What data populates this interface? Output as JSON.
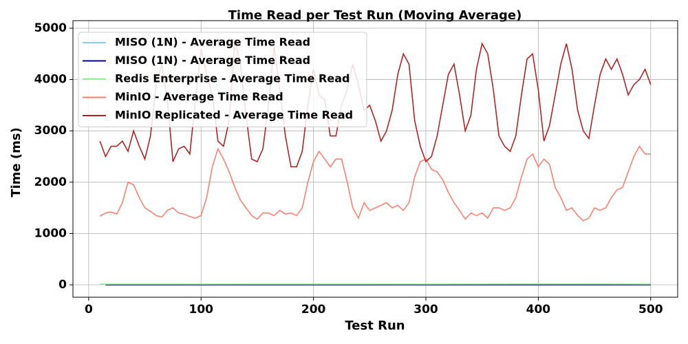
{
  "chart_data": {
    "type": "line",
    "title": "Time Read per Test Run (Moving Average)",
    "x_label": "Test Run",
    "y_label": "Time (ms)",
    "xlim": [
      -14,
      524
    ],
    "ylim": [
      -241,
      5147
    ],
    "xticks": [
      0,
      100,
      200,
      300,
      400,
      500
    ],
    "yticks": [
      0,
      1000,
      2000,
      3000,
      4000,
      5000
    ],
    "grid": true,
    "legend": "upper left",
    "series": [
      {
        "name": "MISO (1N) - Average Time Read",
        "color": "#87ceeb",
        "x": [
          15,
          100,
          200,
          300,
          400,
          500
        ],
        "values": [
          8,
          6,
          8,
          7,
          8,
          6
        ]
      },
      {
        "name": "MISO (1N) - Average Time Read",
        "color": "#000080",
        "x": [
          15,
          100,
          200,
          300,
          400,
          500
        ],
        "values": [
          2,
          1,
          2,
          1,
          2,
          1
        ]
      },
      {
        "name": "Redis Enterprise - Average Time Read",
        "color": "#90ee90",
        "x": [
          10,
          100,
          200,
          300,
          400,
          500
        ],
        "values": [
          15,
          14,
          15,
          14,
          16,
          15
        ]
      },
      {
        "name": "MinIO - Average Time Read",
        "color": "#fa8072",
        "x": [
          10,
          15,
          20,
          25,
          30,
          35,
          40,
          45,
          50,
          55,
          60,
          65,
          70,
          75,
          80,
          85,
          90,
          95,
          100,
          105,
          110,
          115,
          120,
          125,
          130,
          135,
          140,
          145,
          150,
          155,
          160,
          165,
          170,
          175,
          180,
          185,
          190,
          195,
          200,
          205,
          210,
          215,
          220,
          225,
          230,
          235,
          240,
          245,
          250,
          255,
          260,
          265,
          270,
          275,
          280,
          285,
          290,
          295,
          300,
          305,
          310,
          315,
          320,
          325,
          330,
          335,
          340,
          345,
          350,
          355,
          360,
          365,
          370,
          375,
          380,
          385,
          390,
          395,
          400,
          405,
          410,
          415,
          420,
          425,
          430,
          435,
          440,
          445,
          450,
          455,
          460,
          465,
          470,
          475,
          480,
          485,
          490,
          495,
          500
        ],
        "values": [
          1340,
          1400,
          1420,
          1380,
          1600,
          2000,
          1950,
          1700,
          1500,
          1430,
          1350,
          1320,
          1450,
          1500,
          1400,
          1380,
          1330,
          1300,
          1350,
          1700,
          2300,
          2650,
          2450,
          2200,
          1900,
          1650,
          1500,
          1350,
          1280,
          1400,
          1400,
          1350,
          1450,
          1380,
          1400,
          1350,
          1500,
          2000,
          2400,
          2600,
          2450,
          2300,
          2450,
          2450,
          2000,
          1500,
          1300,
          1600,
          1450,
          1500,
          1550,
          1600,
          1500,
          1550,
          1450,
          1600,
          2100,
          2400,
          2450,
          2250,
          2200,
          2050,
          1800,
          1600,
          1450,
          1280,
          1400,
          1350,
          1400,
          1300,
          1500,
          1500,
          1450,
          1500,
          1700,
          2100,
          2450,
          2550,
          2300,
          2450,
          2350,
          1900,
          1700,
          1450,
          1500,
          1350,
          1250,
          1300,
          1500,
          1450,
          1500,
          1700,
          1850,
          1900,
          2200,
          2500,
          2700,
          2550,
          2550
        ]
      },
      {
        "name": "MinIO Replicated - Average Time Read",
        "color": "#b22222",
        "x": [
          10,
          15,
          20,
          25,
          30,
          35,
          40,
          45,
          50,
          55,
          60,
          65,
          70,
          75,
          80,
          85,
          90,
          95,
          100,
          105,
          110,
          115,
          120,
          125,
          130,
          135,
          140,
          145,
          150,
          155,
          160,
          165,
          170,
          175,
          180,
          185,
          190,
          195,
          200,
          205,
          210,
          215,
          220,
          225,
          230,
          235,
          240,
          245,
          250,
          255,
          260,
          265,
          270,
          275,
          280,
          285,
          290,
          295,
          300,
          305,
          310,
          315,
          320,
          325,
          330,
          335,
          340,
          345,
          350,
          355,
          360,
          365,
          370,
          375,
          380,
          385,
          390,
          395,
          400,
          405,
          410,
          415,
          420,
          425,
          430,
          435,
          440,
          445,
          450,
          455,
          460,
          465,
          470,
          475,
          480,
          485,
          490,
          495,
          500
        ],
        "values": [
          2800,
          2500,
          2700,
          2700,
          2800,
          2600,
          3000,
          2700,
          2450,
          2900,
          3900,
          4300,
          3600,
          2400,
          2650,
          2700,
          2550,
          3600,
          4600,
          4100,
          3700,
          2800,
          2700,
          3200,
          4750,
          4300,
          3300,
          2450,
          2400,
          2650,
          3500,
          4650,
          3800,
          2900,
          2300,
          2300,
          2600,
          3500,
          4200,
          3700,
          3600,
          2900,
          2900,
          3500,
          3800,
          4300,
          3900,
          3400,
          3500,
          3200,
          2800,
          3000,
          3400,
          4100,
          4500,
          4300,
          3200,
          2700,
          2400,
          2500,
          2900,
          3500,
          4100,
          4300,
          3700,
          3000,
          3300,
          4200,
          4700,
          4500,
          3800,
          2900,
          2700,
          2600,
          2900,
          3700,
          4400,
          4500,
          3800,
          2800,
          3100,
          3700,
          4300,
          4700,
          4200,
          3400,
          3000,
          2850,
          3500,
          4100,
          4400,
          4200,
          4400,
          4100,
          3700,
          3900,
          4000,
          4200,
          3900
        ]
      }
    ]
  }
}
